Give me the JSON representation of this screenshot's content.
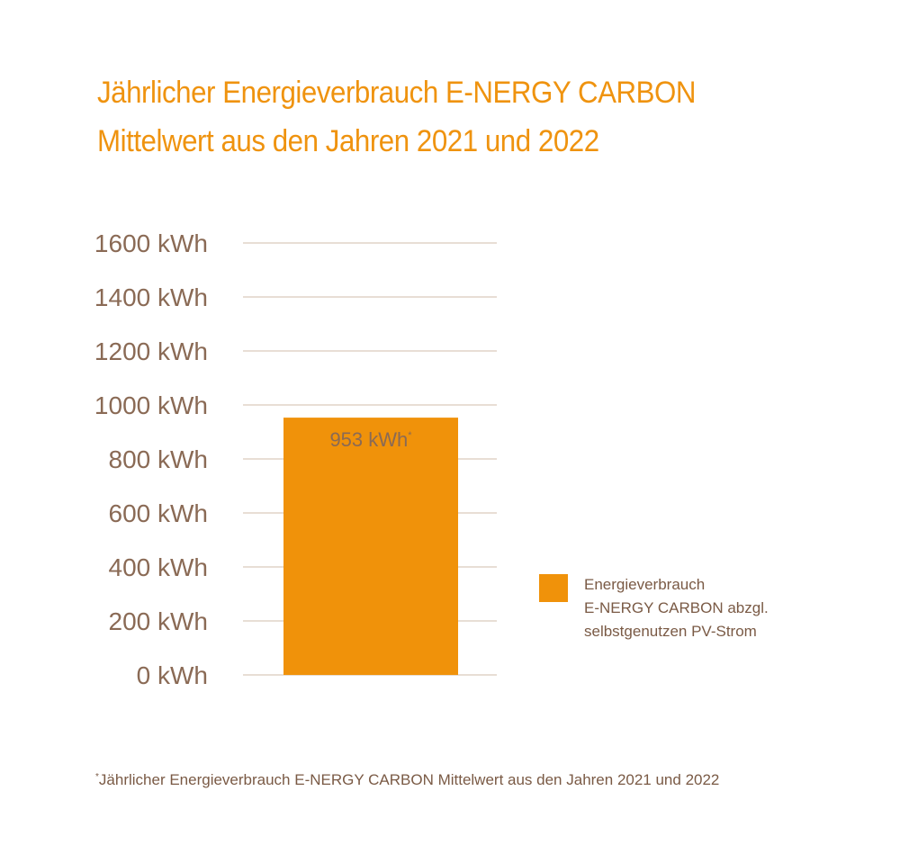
{
  "title": {
    "line1": "Jährlicher Energieverbrauch E-NERGY CARBON",
    "line2": "Mittelwert aus den Jahren 2021 und 2022"
  },
  "colors": {
    "accent": "#ef930f",
    "bar": "#f0920a",
    "text": "#8a6a55",
    "grid": "#d9c9bc"
  },
  "chart_data": {
    "type": "bar",
    "title": "Jährlicher Energieverbrauch E-NERGY CARBON Mittelwert aus den Jahren 2021 und 2022",
    "categories": [
      ""
    ],
    "values": [
      953
    ],
    "data_labels": [
      "953 kWh"
    ],
    "data_label_marker": "*",
    "ylim": [
      0,
      1600
    ],
    "yticks": [
      0,
      200,
      400,
      600,
      800,
      1000,
      1200,
      1400,
      1600
    ],
    "ytick_labels": [
      "0 kWh",
      "200 kWh",
      "400 kWh",
      "600 kWh",
      "800 kWh",
      "1000 kWh",
      "1200 kWh",
      "1400 kWh",
      "1600 kWh"
    ],
    "unit": "kWh",
    "grid": true,
    "legend": [
      "Energieverbrauch E-NERGY CARBON abzgl. selbstgenutzen PV-Strom"
    ],
    "legend_position": "right"
  },
  "legend": {
    "lines": [
      "Energieverbrauch",
      "E-NERGY CARBON abzgl.",
      "selbstgenutzen PV-Strom"
    ]
  },
  "footnote": {
    "marker": "*",
    "text": "Jährlicher Energieverbrauch E-NERGY CARBON Mittelwert aus den Jahren 2021 und 2022"
  }
}
